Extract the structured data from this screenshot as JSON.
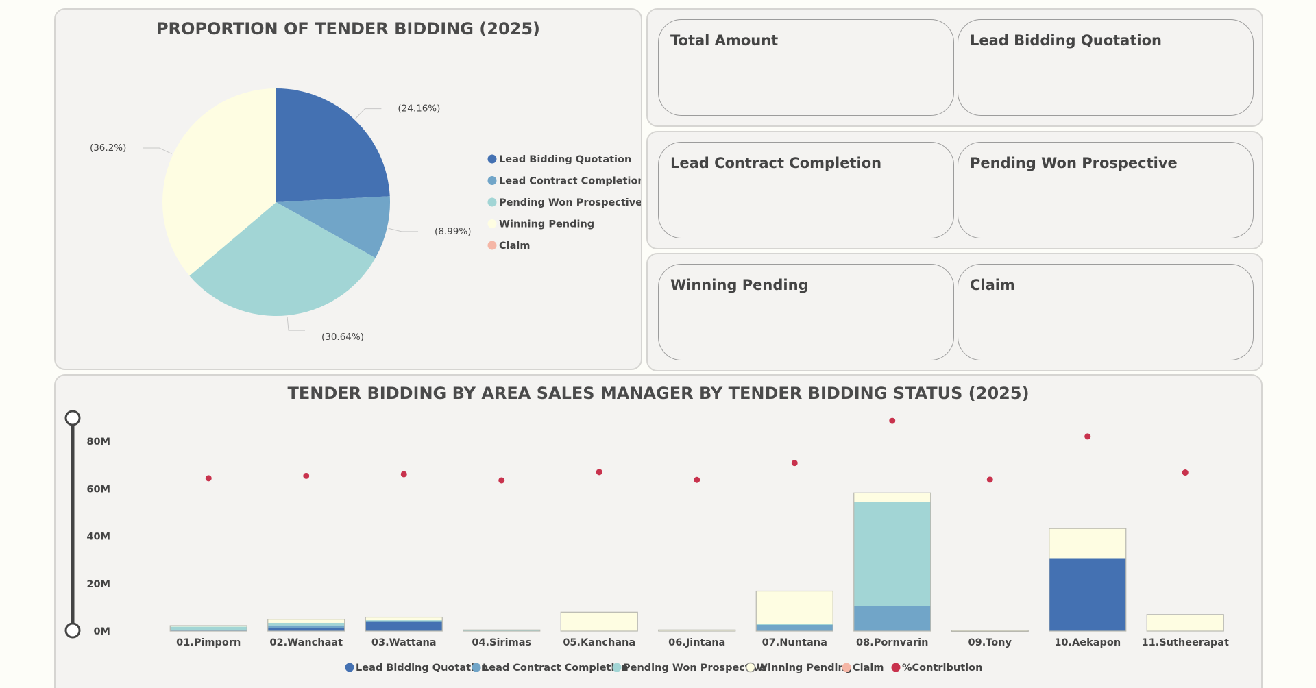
{
  "pie_title": "PROPORTION OF TENDER BIDDING (2025)",
  "bar_title": "TENDER BIDDING BY AREA SALES MANAGER BY TENDER BIDDING STATUS (2025)",
  "cards": [
    {
      "title": "Total Amount"
    },
    {
      "title": "Lead Bidding Quotation"
    },
    {
      "title": "Lead Contract Completion"
    },
    {
      "title": "Pending Won Prospective"
    },
    {
      "title": "Winning Pending"
    },
    {
      "title": "Claim"
    }
  ],
  "colors": {
    "lead_bidding": "#4471b2",
    "lead_contract": "#71a5c8",
    "pending_won": "#a2d5d5",
    "winning_pending": "#fefde2",
    "claim": "#f5b6a6",
    "contribution": "#c8324d"
  },
  "chart_data": [
    {
      "type": "pie",
      "title": "PROPORTION OF TENDER BIDDING (2025)",
      "legend_position": "right",
      "slices": [
        {
          "name": "Lead Bidding Quotation",
          "value": 24.16,
          "label": "(24.16%)"
        },
        {
          "name": "Lead Contract Completion",
          "value": 8.99,
          "label": "(8.99%)"
        },
        {
          "name": "Pending Won Prospective",
          "value": 30.64,
          "label": "(30.64%)"
        },
        {
          "name": "Winning Pending",
          "value": 36.2,
          "label": "(36.2%)"
        },
        {
          "name": "Claim",
          "value": 0,
          "label": ""
        }
      ]
    },
    {
      "type": "bar",
      "title": "TENDER BIDDING BY AREA SALES MANAGER BY TENDER BIDDING STATUS (2025)",
      "stacked": true,
      "legend_position": "bottom",
      "categories": [
        "01.Pimporn",
        "02.Wanchaat",
        "03.Wattana",
        "04.Sirimas",
        "05.Kanchana",
        "06.Jintana",
        "07.Nuntana",
        "08.Pornvarin",
        "09.Tony",
        "10.Aekapon",
        "11.Sutheerapat"
      ],
      "ylim": [
        0,
        80
      ],
      "yticks": [
        {
          "v": 0,
          "label": "0M"
        },
        {
          "v": 20,
          "label": "20M"
        },
        {
          "v": 40,
          "label": "40M"
        },
        {
          "v": 60,
          "label": "60M"
        },
        {
          "v": 80,
          "label": "80M"
        }
      ],
      "series": [
        {
          "name": "Lead Bidding Quotation",
          "values": [
            0,
            1.2,
            4.3,
            0,
            0,
            0,
            0,
            0,
            0,
            30.5,
            0
          ]
        },
        {
          "name": "Lead Contract Completion",
          "values": [
            0.4,
            1.2,
            0,
            0,
            0,
            0.3,
            2.6,
            10.6,
            0,
            0,
            0
          ]
        },
        {
          "name": "Pending Won Prospective",
          "values": [
            1.6,
            1.1,
            0.3,
            0.5,
            0,
            0,
            0.5,
            43.8,
            0,
            0,
            0
          ]
        },
        {
          "name": "Winning Pending",
          "values": [
            0.3,
            1.5,
            1.3,
            0,
            8.0,
            0.2,
            13.8,
            3.9,
            0.3,
            12.8,
            7.0
          ]
        },
        {
          "name": "Claim",
          "values": [
            0,
            0,
            0,
            0,
            0,
            0,
            0,
            0,
            0,
            0,
            0
          ]
        }
      ],
      "contribution_series": {
        "name": "%Contribution",
        "values": [
          64.5,
          65.5,
          66.2,
          63.6,
          67.1,
          63.8,
          70.9,
          88.7,
          63.9,
          82.1,
          66.9
        ]
      }
    }
  ]
}
